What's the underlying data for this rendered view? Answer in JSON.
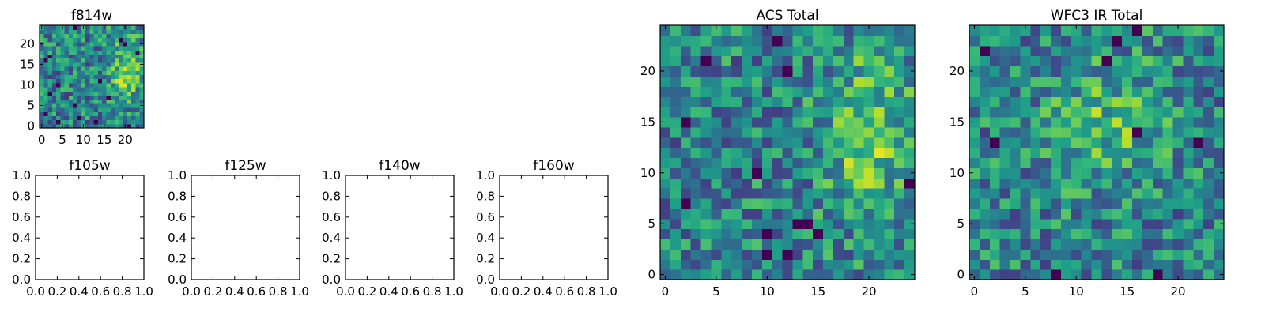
{
  "colormap": "viridis",
  "chart_data": [
    {
      "type": "heatmap",
      "title": "f814w",
      "grid_size": [
        25,
        25
      ],
      "xlim": [
        -0.5,
        24.5
      ],
      "ylim": [
        -0.5,
        24.5
      ],
      "xticks": [
        0,
        5,
        10,
        15,
        20
      ],
      "yticks": [
        0,
        5,
        10,
        15,
        20
      ],
      "seed": 11,
      "bright_region": "right",
      "dark_pixels": [
        [
          8,
          24
        ],
        [
          19,
          21
        ],
        [
          20,
          20
        ],
        [
          23,
          18
        ],
        [
          2,
          17
        ],
        [
          1,
          16
        ],
        [
          14,
          11
        ],
        [
          4,
          10
        ],
        [
          2,
          8
        ],
        [
          16,
          7
        ],
        [
          8,
          5
        ],
        [
          1,
          3
        ],
        [
          9,
          2
        ],
        [
          4,
          1
        ],
        [
          13,
          1
        ],
        [
          21,
          0
        ]
      ]
    },
    {
      "type": "heatmap",
      "title": "f105w",
      "empty": true,
      "xlim": [
        0,
        1
      ],
      "ylim": [
        0,
        1
      ],
      "xticks": [
        "0.0",
        "0.2",
        "0.4",
        "0.6",
        "0.8",
        "1.0"
      ],
      "yticks": [
        "0.0",
        "0.2",
        "0.4",
        "0.6",
        "0.8",
        "1.0"
      ]
    },
    {
      "type": "heatmap",
      "title": "f125w",
      "empty": true,
      "xlim": [
        0,
        1
      ],
      "ylim": [
        0,
        1
      ],
      "xticks": [
        "0.0",
        "0.2",
        "0.4",
        "0.6",
        "0.8",
        "1.0"
      ],
      "yticks": [
        "0.0",
        "0.2",
        "0.4",
        "0.6",
        "0.8",
        "1.0"
      ]
    },
    {
      "type": "heatmap",
      "title": "f140w",
      "empty": true,
      "xlim": [
        0,
        1
      ],
      "ylim": [
        0,
        1
      ],
      "xticks": [
        "0.0",
        "0.2",
        "0.4",
        "0.6",
        "0.8",
        "1.0"
      ],
      "yticks": [
        "0.0",
        "0.2",
        "0.4",
        "0.6",
        "0.8",
        "1.0"
      ]
    },
    {
      "type": "heatmap",
      "title": "f160w",
      "empty": true,
      "xlim": [
        0,
        1
      ],
      "ylim": [
        0,
        1
      ],
      "xticks": [
        "0.0",
        "0.2",
        "0.4",
        "0.6",
        "0.8",
        "1.0"
      ],
      "yticks": [
        "0.0",
        "0.2",
        "0.4",
        "0.6",
        "0.8",
        "1.0"
      ]
    },
    {
      "type": "heatmap",
      "title": "ACS Total",
      "grid_size": [
        25,
        25
      ],
      "xlim": [
        -0.5,
        24.5
      ],
      "ylim": [
        -0.5,
        24.5
      ],
      "xticks": [
        0,
        5,
        10,
        15,
        20
      ],
      "yticks": [
        0,
        5,
        10,
        15,
        20
      ],
      "seed": 23,
      "bright_region": "right",
      "dark_pixels": [
        [
          11,
          23
        ],
        [
          4,
          21
        ],
        [
          12,
          20
        ],
        [
          2,
          15
        ],
        [
          9,
          10
        ],
        [
          24,
          9
        ],
        [
          2,
          7
        ],
        [
          13,
          5
        ],
        [
          14,
          5
        ],
        [
          10,
          4
        ],
        [
          10,
          2
        ],
        [
          12,
          2
        ],
        [
          15,
          4
        ]
      ]
    },
    {
      "type": "heatmap",
      "title": "WFC3 IR Total",
      "grid_size": [
        25,
        25
      ],
      "xlim": [
        -0.5,
        24.5
      ],
      "ylim": [
        -0.5,
        24.5
      ],
      "xticks": [
        0,
        5,
        10,
        15,
        20
      ],
      "yticks": [
        0,
        5,
        10,
        15,
        20
      ],
      "seed": 37,
      "bright_region": "center",
      "dark_pixels": [
        [
          16,
          24
        ],
        [
          14,
          23
        ],
        [
          1,
          22
        ],
        [
          13,
          21
        ],
        [
          16,
          14
        ],
        [
          2,
          13
        ],
        [
          22,
          13
        ],
        [
          8,
          0
        ],
        [
          18,
          0
        ]
      ]
    }
  ]
}
